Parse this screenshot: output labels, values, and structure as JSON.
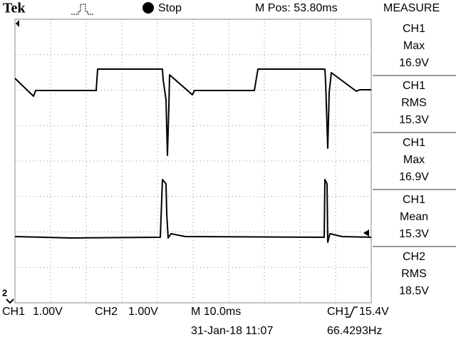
{
  "header": {
    "brand": "Tek",
    "status": "Stop",
    "position": "M Pos: 53.80ms",
    "menu_title": "MEASURE"
  },
  "measurements": [
    {
      "channel": "CH1",
      "type": "Max",
      "value": "16.9V"
    },
    {
      "channel": "CH1",
      "type": "RMS",
      "value": "15.3V"
    },
    {
      "channel": "CH1",
      "type": "Max",
      "value": "16.9V"
    },
    {
      "channel": "CH1",
      "type": "Mean",
      "value": "15.3V"
    },
    {
      "channel": "CH2",
      "type": "RMS",
      "value": "18.5V"
    }
  ],
  "markers": {
    "ch1": "1",
    "ch2": "2"
  },
  "footer": {
    "ch1_label": "CH1",
    "ch1_scale": "1.00V",
    "ch2_label": "CH2",
    "ch2_scale": "1.00V",
    "timebase": "M 10.0ms",
    "trigger_source": "CH1",
    "trigger_level": "15.4V",
    "datetime": "31-Jan-18 11:07",
    "frequency": "66.4293Hz"
  }
}
